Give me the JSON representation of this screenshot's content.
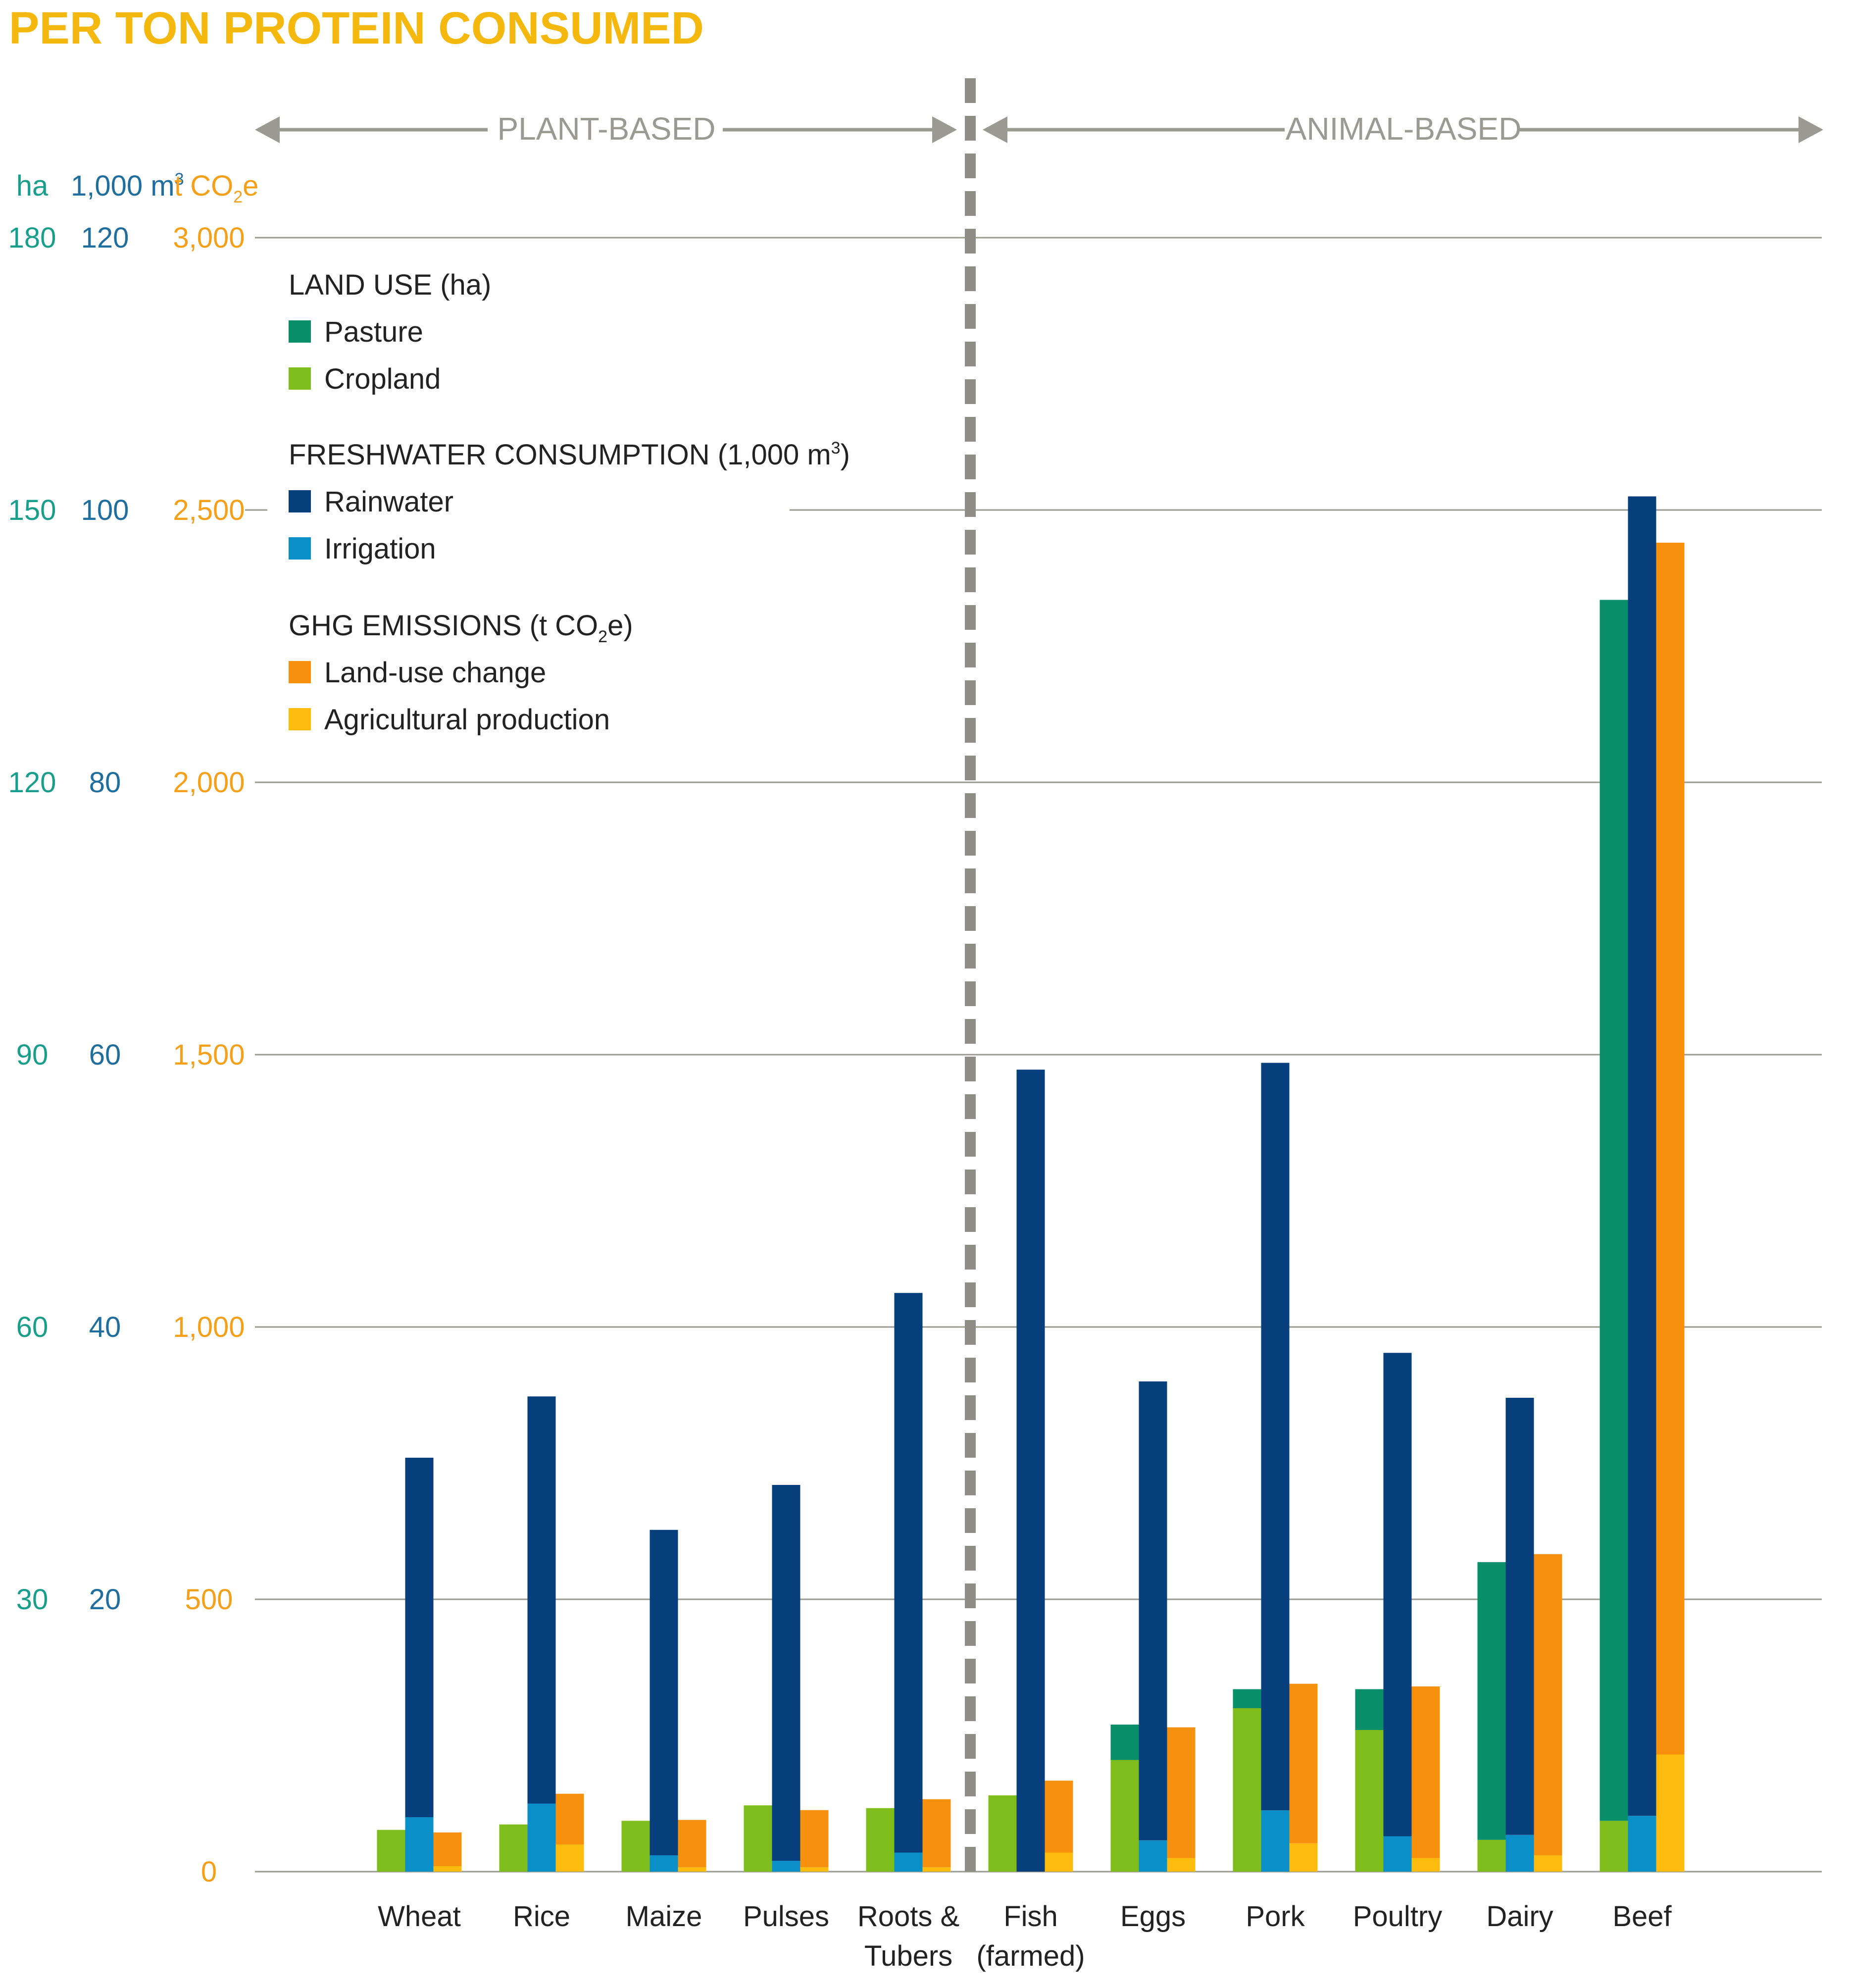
{
  "chart_data": {
    "type": "bar",
    "title": "PER TON PROTEIN CONSUMED",
    "groups": [
      {
        "label": "PLANT-BASED",
        "categories": [
          "Wheat",
          "Rice",
          "Maize",
          "Pulses",
          "Roots & Tubers"
        ]
      },
      {
        "label": "ANIMAL-BASED",
        "categories": [
          "Fish (farmed)",
          "Eggs",
          "Pork",
          "Poultry",
          "Dairy",
          "Beef"
        ]
      }
    ],
    "categories": [
      [
        "Wheat"
      ],
      [
        "Rice"
      ],
      [
        "Maize"
      ],
      [
        "Pulses"
      ],
      [
        "Roots &",
        "Tubers"
      ],
      [
        "Fish",
        "(farmed)"
      ],
      [
        "Eggs"
      ],
      [
        "Pork"
      ],
      [
        "Poultry"
      ],
      [
        "Dairy"
      ],
      [
        "Beef"
      ]
    ],
    "axes": [
      {
        "unit": "ha",
        "ticks": [
          "180",
          "150",
          "120",
          "90",
          "60",
          "30"
        ],
        "max": 180,
        "color": "#1a9e8c"
      },
      {
        "unit": "1,000 m",
        "unit_sup": "3",
        "ticks": [
          "120",
          "100",
          "80",
          "60",
          "40",
          "20"
        ],
        "max": 120,
        "color": "#1f6e9e"
      },
      {
        "unit": "t CO",
        "unit_sub": "2",
        "unit_end": "e",
        "ticks": [
          "3,000",
          "2,500",
          "2,000",
          "1,500",
          "1,000",
          "500",
          "0"
        ],
        "max": 3000,
        "color": "#f6a01a"
      }
    ],
    "gridlines": [
      3000,
      2500,
      2000,
      1500,
      1000,
      500,
      0
    ],
    "legend": {
      "placement": "top-left",
      "sections": [
        {
          "title": "LAND USE (ha)",
          "items": [
            {
              "label": "Pasture",
              "color": "#0a8f6b"
            },
            {
              "label": "Cropland",
              "color": "#7fbd1c"
            }
          ]
        },
        {
          "title": "FRESHWATER CONSUMPTION (1,000 m",
          "title_sup": "3",
          "title_end": ")",
          "items": [
            {
              "label": "Rainwater",
              "color": "#063f7b"
            },
            {
              "label": "Irrigation",
              "color": "#0b8fc9"
            }
          ]
        },
        {
          "title": "GHG EMISSIONS (t CO",
          "title_sub": "2",
          "title_end": "e)",
          "items": [
            {
              "label": "Land-use change",
              "color": "#f7900c"
            },
            {
              "label": "Agricultural production",
              "color": "#fcbb0d"
            }
          ]
        }
      ]
    },
    "series": [
      {
        "name": "Cropland",
        "measure": "land",
        "values": [
          4.6,
          5.2,
          5.6,
          7.3,
          7.0,
          8.4,
          12.3,
          18.0,
          15.6,
          3.5,
          5.6
        ]
      },
      {
        "name": "Pasture",
        "measure": "land",
        "values": [
          0,
          0,
          0,
          0,
          0,
          0,
          3.9,
          2.1,
          4.5,
          30.6,
          134.5
        ]
      },
      {
        "name": "Irrigation",
        "measure": "water",
        "values": [
          4.0,
          5.0,
          1.2,
          0.8,
          1.4,
          0,
          2.3,
          4.5,
          2.6,
          2.7,
          4.1
        ]
      },
      {
        "name": "Rainwater",
        "measure": "water",
        "values": [
          26.4,
          29.9,
          23.9,
          27.6,
          41.1,
          58.9,
          33.7,
          54.9,
          35.5,
          32.1,
          96.9
        ]
      },
      {
        "name": "Agricultural production",
        "measure": "ghg",
        "values": [
          10,
          50,
          8,
          8,
          8,
          35,
          25,
          52,
          25,
          30,
          215
        ]
      },
      {
        "name": "Land-use change",
        "measure": "ghg",
        "values": [
          62,
          93,
          87,
          105,
          125,
          132,
          240,
          293,
          315,
          553,
          2225
        ]
      }
    ]
  }
}
